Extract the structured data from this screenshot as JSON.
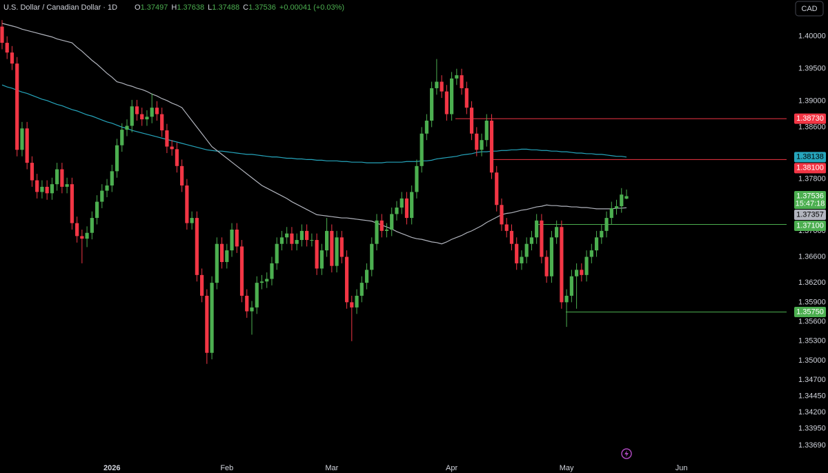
{
  "chart_data": {
    "type": "candlestick",
    "title": "U.S. Dollar / Canadian Dollar · 1D",
    "ohlc_labels": [
      "O",
      "H",
      "L",
      "C"
    ],
    "change": "+0.00041 (+0.03%)",
    "currency": "CAD",
    "countdown": "15:47:18",
    "up_color": "#4caf50",
    "down_color": "#f23645",
    "grid": false,
    "ylim": [
      1.3348,
      1.4056
    ],
    "yticks": [
      {
        "value": 1.4,
        "label": "1.40000"
      },
      {
        "value": 1.395,
        "label": "1.39500"
      },
      {
        "value": 1.39,
        "label": "1.39000"
      },
      {
        "value": 1.386,
        "label": "1.38600"
      },
      {
        "value": 1.378,
        "label": "1.37800"
      },
      {
        "value": 1.37,
        "label": "1.37000"
      },
      {
        "value": 1.366,
        "label": "1.36600"
      },
      {
        "value": 1.362,
        "label": "1.36200"
      },
      {
        "value": 1.359,
        "label": "1.35900"
      },
      {
        "value": 1.356,
        "label": "1.35600"
      },
      {
        "value": 1.353,
        "label": "1.35300"
      },
      {
        "value": 1.35,
        "label": "1.35000"
      },
      {
        "value": 1.347,
        "label": "1.34700"
      },
      {
        "value": 1.3445,
        "label": "1.34450"
      },
      {
        "value": 1.342,
        "label": "1.34200"
      },
      {
        "value": 1.3395,
        "label": "1.33950"
      },
      {
        "value": 1.3369,
        "label": "1.33690"
      }
    ],
    "categories": [
      null,
      null,
      null,
      null,
      null,
      null,
      null,
      null,
      null,
      null,
      null,
      null,
      null,
      null,
      null,
      null,
      null,
      null,
      null,
      null,
      null,
      null,
      "2026",
      null,
      null,
      null,
      null,
      null,
      null,
      null,
      null,
      null,
      null,
      null,
      null,
      null,
      null,
      null,
      null,
      null,
      null,
      null,
      null,
      null,
      null,
      "Feb",
      null,
      null,
      null,
      null,
      null,
      null,
      null,
      null,
      null,
      null,
      null,
      null,
      null,
      null,
      null,
      null,
      null,
      null,
      null,
      null,
      "Mar",
      null,
      null,
      null,
      null,
      null,
      null,
      null,
      null,
      null,
      null,
      null,
      null,
      null,
      null,
      null,
      null,
      null,
      null,
      null,
      null,
      null,
      null,
      null,
      "Apr",
      null,
      null,
      null,
      null,
      null,
      null,
      null,
      null,
      null,
      null,
      null,
      null,
      null,
      null,
      null,
      null,
      null,
      null,
      null,
      null,
      null,
      null,
      "May",
      null,
      null,
      null,
      null,
      null,
      null,
      null,
      null,
      null,
      null,
      null,
      null,
      null,
      null,
      null,
      null,
      null,
      null,
      null,
      null,
      null,
      null,
      "Jun"
    ],
    "open": [
      1.4015,
      1.399,
      1.3975,
      1.3958,
      1.3825,
      1.3858,
      1.3805,
      1.3778,
      1.376,
      1.3768,
      1.3758,
      1.3772,
      1.3795,
      1.3768,
      1.3772,
      1.3712,
      1.3692,
      1.3688,
      1.3697,
      1.372,
      1.3745,
      1.3762,
      1.377,
      1.3792,
      1.3832,
      1.3856,
      1.3862,
      1.3892,
      1.388,
      1.3872,
      1.3876,
      1.389,
      1.388,
      1.3855,
      1.383,
      1.3826,
      1.38,
      1.377,
      1.3712,
      1.372,
      1.3632,
      1.36,
      1.3512,
      1.362,
      1.368,
      1.3652,
      1.367,
      1.3702,
      1.3676,
      1.36,
      1.3576,
      1.3582,
      1.362,
      1.3622,
      1.3626,
      1.365,
      1.368,
      1.369,
      1.3696,
      1.368,
      1.3686,
      1.37,
      1.3686,
      1.3686,
      1.3642,
      1.367,
      1.37,
      1.3646,
      1.369,
      1.366,
      1.359,
      1.3582,
      1.36,
      1.362,
      1.364,
      1.368,
      1.3716,
      1.37,
      1.3702,
      1.3726,
      1.3736,
      1.375,
      1.372,
      1.376,
      1.38,
      1.385,
      1.387,
      1.392,
      1.393,
      1.3915,
      1.388,
      1.3935,
      1.394,
      1.392,
      1.389,
      1.385,
      1.3825,
      1.384,
      1.387,
      1.379,
      1.374,
      1.371,
      1.37,
      1.368,
      1.365,
      1.366,
      1.368,
      1.369,
      1.3716,
      1.366,
      1.363,
      1.369,
      1.3706,
      1.359,
      1.36,
      1.363,
      1.364,
      1.3632,
      1.366,
      1.367,
      1.369,
      1.37,
      1.372,
      1.3735,
      1.3738,
      1.37497,
      null,
      null,
      null,
      null,
      null,
      null,
      null,
      null,
      null,
      null,
      null
    ],
    "high": [
      1.4025,
      1.4,
      1.3985,
      1.3968,
      1.3868,
      1.3868,
      1.3815,
      1.3788,
      1.3778,
      1.3778,
      1.3782,
      1.3805,
      1.3805,
      1.3782,
      1.3782,
      1.3722,
      1.3702,
      1.3707,
      1.373,
      1.3755,
      1.3772,
      1.378,
      1.3802,
      1.3842,
      1.3866,
      1.3872,
      1.3902,
      1.3902,
      1.389,
      1.3886,
      1.3912,
      1.39,
      1.389,
      1.3865,
      1.384,
      1.3836,
      1.381,
      1.378,
      1.373,
      1.373,
      1.3642,
      1.361,
      1.363,
      1.369,
      1.369,
      1.368,
      1.3712,
      1.3712,
      1.3686,
      1.361,
      1.3592,
      1.363,
      1.3632,
      1.3636,
      1.366,
      1.369,
      1.37,
      1.3706,
      1.3706,
      1.3696,
      1.371,
      1.371,
      1.3696,
      1.3696,
      1.368,
      1.372,
      1.371,
      1.37,
      1.37,
      1.367,
      1.36,
      1.361,
      1.363,
      1.365,
      1.369,
      1.3726,
      1.3726,
      1.3712,
      1.3736,
      1.3746,
      1.376,
      1.376,
      1.377,
      1.381,
      1.386,
      1.388,
      1.393,
      1.3965,
      1.394,
      1.3925,
      1.3945,
      1.395,
      1.395,
      1.393,
      1.39,
      1.386,
      1.385,
      1.388,
      1.388,
      1.38,
      1.375,
      1.372,
      1.371,
      1.369,
      1.367,
      1.369,
      1.37,
      1.3726,
      1.3726,
      1.367,
      1.37,
      1.3716,
      1.3716,
      1.361,
      1.364,
      1.365,
      1.365,
      1.367,
      1.368,
      1.37,
      1.371,
      1.373,
      1.3745,
      1.3748,
      1.3766,
      1.37638,
      null,
      null,
      null,
      null,
      null,
      null,
      null,
      null,
      null,
      null,
      null
    ],
    "low": [
      1.398,
      1.3965,
      1.3948,
      1.3815,
      1.3815,
      1.3795,
      1.3768,
      1.375,
      1.375,
      1.3748,
      1.3748,
      1.3762,
      1.3758,
      1.3758,
      1.3702,
      1.3682,
      1.365,
      1.3675,
      1.3687,
      1.371,
      1.3735,
      1.3752,
      1.376,
      1.3782,
      1.3822,
      1.3846,
      1.3852,
      1.387,
      1.3862,
      1.3862,
      1.3866,
      1.387,
      1.3845,
      1.382,
      1.3816,
      1.379,
      1.376,
      1.3702,
      1.3702,
      1.3622,
      1.359,
      1.3495,
      1.3502,
      1.361,
      1.3642,
      1.3642,
      1.366,
      1.3666,
      1.359,
      1.3566,
      1.354,
      1.3572,
      1.361,
      1.3612,
      1.3616,
      1.364,
      1.367,
      1.368,
      1.367,
      1.367,
      1.3676,
      1.3676,
      1.3676,
      1.3632,
      1.3632,
      1.366,
      1.3636,
      1.3636,
      1.365,
      1.358,
      1.353,
      1.3572,
      1.359,
      1.361,
      1.363,
      1.367,
      1.369,
      1.369,
      1.3692,
      1.3716,
      1.3726,
      1.371,
      1.371,
      1.375,
      1.379,
      1.384,
      1.386,
      1.391,
      1.3905,
      1.387,
      1.387,
      1.3925,
      1.391,
      1.388,
      1.384,
      1.3815,
      1.3815,
      1.383,
      1.378,
      1.373,
      1.37,
      1.369,
      1.367,
      1.364,
      1.364,
      1.365,
      1.367,
      1.368,
      1.365,
      1.362,
      1.362,
      1.368,
      1.358,
      1.3552,
      1.359,
      1.358,
      1.3622,
      1.3622,
      1.365,
      1.366,
      1.368,
      1.369,
      1.371,
      1.3725,
      1.3728,
      1.37488,
      null,
      null,
      null,
      null,
      null,
      null,
      null,
      null,
      null,
      null,
      null
    ],
    "close": [
      1.399,
      1.3975,
      1.3958,
      1.3825,
      1.3858,
      1.3805,
      1.3778,
      1.376,
      1.3768,
      1.3758,
      1.3772,
      1.3795,
      1.3768,
      1.3772,
      1.3712,
      1.3692,
      1.3688,
      1.3697,
      1.372,
      1.3745,
      1.3762,
      1.377,
      1.3792,
      1.3832,
      1.3856,
      1.3862,
      1.3892,
      1.388,
      1.3872,
      1.3876,
      1.389,
      1.388,
      1.3855,
      1.383,
      1.3826,
      1.38,
      1.377,
      1.3712,
      1.372,
      1.3632,
      1.36,
      1.3512,
      1.362,
      1.368,
      1.3652,
      1.367,
      1.3702,
      1.3676,
      1.36,
      1.3576,
      1.3582,
      1.362,
      1.3622,
      1.3626,
      1.365,
      1.368,
      1.369,
      1.3696,
      1.368,
      1.3686,
      1.37,
      1.3686,
      1.3686,
      1.3642,
      1.367,
      1.37,
      1.3646,
      1.369,
      1.366,
      1.359,
      1.3582,
      1.36,
      1.362,
      1.364,
      1.368,
      1.3716,
      1.37,
      1.3702,
      1.3726,
      1.3736,
      1.375,
      1.372,
      1.376,
      1.38,
      1.385,
      1.387,
      1.392,
      1.393,
      1.3915,
      1.388,
      1.3935,
      1.394,
      1.392,
      1.389,
      1.385,
      1.3825,
      1.384,
      1.387,
      1.379,
      1.374,
      1.371,
      1.37,
      1.368,
      1.365,
      1.366,
      1.368,
      1.369,
      1.3716,
      1.366,
      1.363,
      1.369,
      1.3706,
      1.359,
      1.36,
      1.363,
      1.364,
      1.3632,
      1.366,
      1.367,
      1.369,
      1.37,
      1.372,
      1.3735,
      1.3738,
      1.3756,
      1.37536,
      null,
      null,
      null,
      null,
      null,
      null,
      null,
      null,
      null,
      null,
      null
    ],
    "moving_averages": [
      {
        "color": "#26a6bd",
        "values": [
          1.3925,
          1.3922,
          1.392,
          1.3917,
          1.3914,
          1.3912,
          1.3909,
          1.3906,
          1.3903,
          1.3901,
          1.3898,
          1.3895,
          1.3893,
          1.389,
          1.3887,
          1.3885,
          1.3882,
          1.3879,
          1.3877,
          1.3874,
          1.3871,
          1.3868,
          1.3866,
          1.3863,
          1.386,
          1.3858,
          1.3855,
          1.3853,
          1.3851,
          1.3849,
          1.3847,
          1.3845,
          1.3843,
          1.3841,
          1.3839,
          1.3837,
          1.3835,
          1.3833,
          1.3831,
          1.3829,
          1.3827,
          1.3825,
          1.3824,
          1.3823,
          1.3823,
          1.3822,
          1.3821,
          1.382,
          1.3819,
          1.3818,
          1.3818,
          1.3817,
          1.3816,
          1.3815,
          1.3814,
          1.3814,
          1.3813,
          1.3812,
          1.3812,
          1.3811,
          1.3811,
          1.381,
          1.381,
          1.3809,
          1.3809,
          1.3808,
          1.3808,
          1.3808,
          1.3807,
          1.3807,
          1.3806,
          1.3806,
          1.3806,
          1.3805,
          1.3805,
          1.3805,
          1.3805,
          1.3806,
          1.3806,
          1.3806,
          1.3806,
          1.3807,
          1.3807,
          1.3807,
          1.3808,
          1.3808,
          1.3809,
          1.3811,
          1.3812,
          1.3813,
          1.3814,
          1.3815,
          1.3817,
          1.3818,
          1.3819,
          1.3821,
          1.3822,
          1.3822,
          1.3823,
          1.3823,
          1.3824,
          1.3824,
          1.3825,
          1.3825,
          1.3826,
          1.3826,
          1.3825,
          1.3825,
          1.3824,
          1.3824,
          1.3823,
          1.3823,
          1.3822,
          1.3822,
          1.3821,
          1.382,
          1.382,
          1.3819,
          1.3819,
          1.3818,
          1.3818,
          1.3817,
          1.3816,
          1.3815,
          1.3815,
          1.38138,
          null,
          null,
          null,
          null,
          null,
          null,
          null,
          null,
          null,
          null,
          null
        ]
      },
      {
        "color": "#b2b5be",
        "values": [
          1.402,
          1.4018,
          1.4016,
          1.4014,
          1.4011,
          1.4009,
          1.4007,
          1.4005,
          1.4003,
          1.4001,
          1.3999,
          1.3996,
          1.3994,
          1.3992,
          1.399,
          1.3983,
          1.3977,
          1.397,
          1.3963,
          1.3957,
          1.395,
          1.3943,
          1.3937,
          1.393,
          1.3928,
          1.3925,
          1.3923,
          1.392,
          1.3918,
          1.3915,
          1.3911,
          1.3908,
          1.3904,
          1.3901,
          1.3897,
          1.3894,
          1.389,
          1.388,
          1.387,
          1.386,
          1.385,
          1.384,
          1.383,
          1.3824,
          1.3818,
          1.3812,
          1.3806,
          1.38,
          1.3794,
          1.3788,
          1.3782,
          1.3776,
          1.377,
          1.3766,
          1.3762,
          1.3758,
          1.3754,
          1.375,
          1.3745,
          1.3741,
          1.3737,
          1.3733,
          1.3729,
          1.3725,
          1.3724,
          1.3723,
          1.3722,
          1.3721,
          1.372,
          1.372,
          1.3719,
          1.3718,
          1.3717,
          1.3716,
          1.3715,
          1.3712,
          1.3709,
          1.3706,
          1.3703,
          1.3699,
          1.3696,
          1.3693,
          1.369,
          1.3688,
          1.3687,
          1.3685,
          1.3683,
          1.3682,
          1.368,
          1.3683,
          1.3687,
          1.369,
          1.3693,
          1.3697,
          1.37,
          1.3704,
          1.3708,
          1.3713,
          1.3717,
          1.3721,
          1.3725,
          1.3727,
          1.3728,
          1.373,
          1.3732,
          1.3733,
          1.3735,
          1.3737,
          1.3738,
          1.374,
          1.3739,
          1.3739,
          1.3738,
          1.3738,
          1.3737,
          1.3737,
          1.3736,
          1.3736,
          1.3735,
          1.3734,
          1.3734,
          1.3734,
          1.3734,
          1.3735,
          1.3735,
          1.37357,
          null,
          null,
          null,
          null,
          null,
          null,
          null,
          null,
          null,
          null,
          null
        ]
      }
    ],
    "levels": [
      {
        "value": 1.3873,
        "label": "1.38730",
        "color": "#f23645"
      },
      {
        "value": 1.381,
        "label": "1.38100",
        "color": "#f23645"
      },
      {
        "value": 1.371,
        "label": "1.37100",
        "color": "#4caf50"
      },
      {
        "value": 1.3575,
        "label": "1.35750",
        "color": "#4caf50"
      }
    ]
  }
}
